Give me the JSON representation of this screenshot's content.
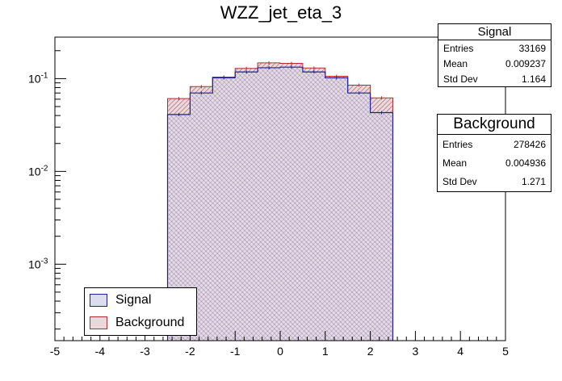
{
  "chart_data": {
    "type": "bar",
    "title": "WZZ_jet_eta_3",
    "xlabel": "",
    "ylabel": "",
    "xlim": [
      -5,
      5
    ],
    "ylim": [
      0.00015,
      0.28
    ],
    "yscale": "log",
    "bin_edges": [
      -2.5,
      -2.0,
      -1.5,
      -1.0,
      -0.5,
      0.0,
      0.5,
      1.0,
      1.5,
      2.0,
      2.5
    ],
    "x_ticks": [
      "-5",
      "-4",
      "-3",
      "-2",
      "-1",
      "0",
      "1",
      "2",
      "3",
      "4",
      "5"
    ],
    "y_ticks": [
      {
        "base": "10",
        "exp": "-1",
        "value": 0.1
      },
      {
        "base": "10",
        "exp": "-2",
        "value": 0.01
      },
      {
        "base": "10",
        "exp": "-3",
        "value": 0.001
      }
    ],
    "series": [
      {
        "name": "Signal",
        "color": "#1f1fa0",
        "fill": "#b8b8d8",
        "values": [
          0.041,
          0.07,
          0.102,
          0.118,
          0.131,
          0.133,
          0.118,
          0.102,
          0.07,
          0.043
        ]
      },
      {
        "name": "Background",
        "color": "#b03030",
        "fill": "#d9b8bd",
        "values": [
          0.061,
          0.082,
          0.104,
          0.129,
          0.148,
          0.146,
          0.13,
          0.106,
          0.085,
          0.062
        ]
      }
    ],
    "legend_position": "bottom-left",
    "grid": false
  },
  "stats": {
    "signal": {
      "title": "Signal",
      "rows": [
        {
          "label": "Entries",
          "value": "33169"
        },
        {
          "label": "Mean",
          "value": "0.009237"
        },
        {
          "label": "Std Dev",
          "value": "1.164"
        }
      ]
    },
    "background": {
      "title": "Background",
      "rows": [
        {
          "label": "Entries",
          "value": "278426"
        },
        {
          "label": "Mean",
          "value": "0.004936"
        },
        {
          "label": "Std Dev",
          "value": "1.271"
        }
      ]
    }
  },
  "legend": {
    "items": [
      {
        "label": "Signal"
      },
      {
        "label": "Background"
      }
    ]
  }
}
